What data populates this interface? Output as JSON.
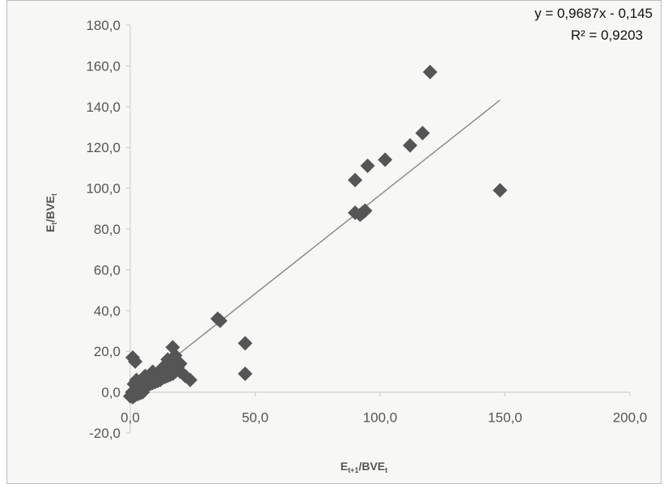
{
  "chart_data": {
    "type": "scatter",
    "title": "",
    "xlabel": {
      "main": "E",
      "sub": "t+1",
      "slash": "/BVE",
      "sub2": "t"
    },
    "ylabel": {
      "main": "E",
      "sub": "t",
      "slash": "/BVE",
      "sub2": "t"
    },
    "xlim": [
      0,
      200
    ],
    "ylim": [
      -20,
      180
    ],
    "xticks": [
      0,
      50,
      100,
      150,
      200
    ],
    "xtick_labels": [
      "0,0",
      "50,0",
      "100,0",
      "150,0",
      "200,0"
    ],
    "yticks": [
      -20,
      0,
      20,
      40,
      60,
      80,
      100,
      120,
      140,
      160,
      180
    ],
    "ytick_labels": [
      "-20,0",
      "0,0",
      "20,0",
      "40,0",
      "60,0",
      "80,0",
      "100,0",
      "120,0",
      "140,0",
      "160,0",
      "180,0"
    ],
    "grid": false,
    "marker_color": "#555555",
    "trendline": {
      "equation": "y = 0,9687x - 0,145",
      "r2_text": "R² = 0,9203",
      "slope": 0.9687,
      "intercept": -0.145,
      "x_range": [
        0,
        148
      ],
      "color": "#8c8c8c"
    },
    "points": [
      [
        0,
        -2
      ],
      [
        0.5,
        -1.5
      ],
      [
        1,
        -2.5
      ],
      [
        1.5,
        -1
      ],
      [
        0.8,
        0
      ],
      [
        2,
        -1.5
      ],
      [
        3,
        -1
      ],
      [
        4,
        -0.5
      ],
      [
        5,
        0
      ],
      [
        2,
        1
      ],
      [
        3,
        1.5
      ],
      [
        4,
        2
      ],
      [
        5,
        2.5
      ],
      [
        6,
        3
      ],
      [
        7,
        3.5
      ],
      [
        8,
        4
      ],
      [
        9,
        4.5
      ],
      [
        10,
        5
      ],
      [
        11,
        5.5
      ],
      [
        12,
        6
      ],
      [
        13,
        7
      ],
      [
        14,
        7.5
      ],
      [
        15,
        8
      ],
      [
        16,
        8.5
      ],
      [
        17,
        9
      ],
      [
        18,
        10
      ],
      [
        6,
        5
      ],
      [
        8,
        6
      ],
      [
        10,
        8
      ],
      [
        12,
        9
      ],
      [
        14,
        10
      ],
      [
        13,
        12
      ],
      [
        15,
        13
      ],
      [
        16,
        11
      ],
      [
        17,
        12
      ],
      [
        18,
        14
      ],
      [
        19,
        12
      ],
      [
        20,
        10
      ],
      [
        22,
        8
      ],
      [
        24,
        6
      ],
      [
        6,
        8
      ],
      [
        9,
        10
      ],
      [
        11,
        9
      ],
      [
        7,
        6
      ],
      [
        4,
        4
      ],
      [
        3,
        5
      ],
      [
        1,
        17
      ],
      [
        2,
        15
      ],
      [
        1.5,
        4
      ],
      [
        2.5,
        6
      ],
      [
        15,
        16
      ],
      [
        18,
        18
      ],
      [
        17,
        22
      ],
      [
        20,
        14
      ],
      [
        35,
        36
      ],
      [
        36,
        35
      ],
      [
        46,
        24
      ],
      [
        46,
        9
      ],
      [
        90,
        104
      ],
      [
        90,
        88
      ],
      [
        92,
        87
      ],
      [
        93,
        88
      ],
      [
        94,
        89
      ],
      [
        95,
        111
      ],
      [
        102,
        114
      ],
      [
        112,
        121
      ],
      [
        117,
        127
      ],
      [
        120,
        157
      ],
      [
        148,
        99
      ]
    ]
  }
}
